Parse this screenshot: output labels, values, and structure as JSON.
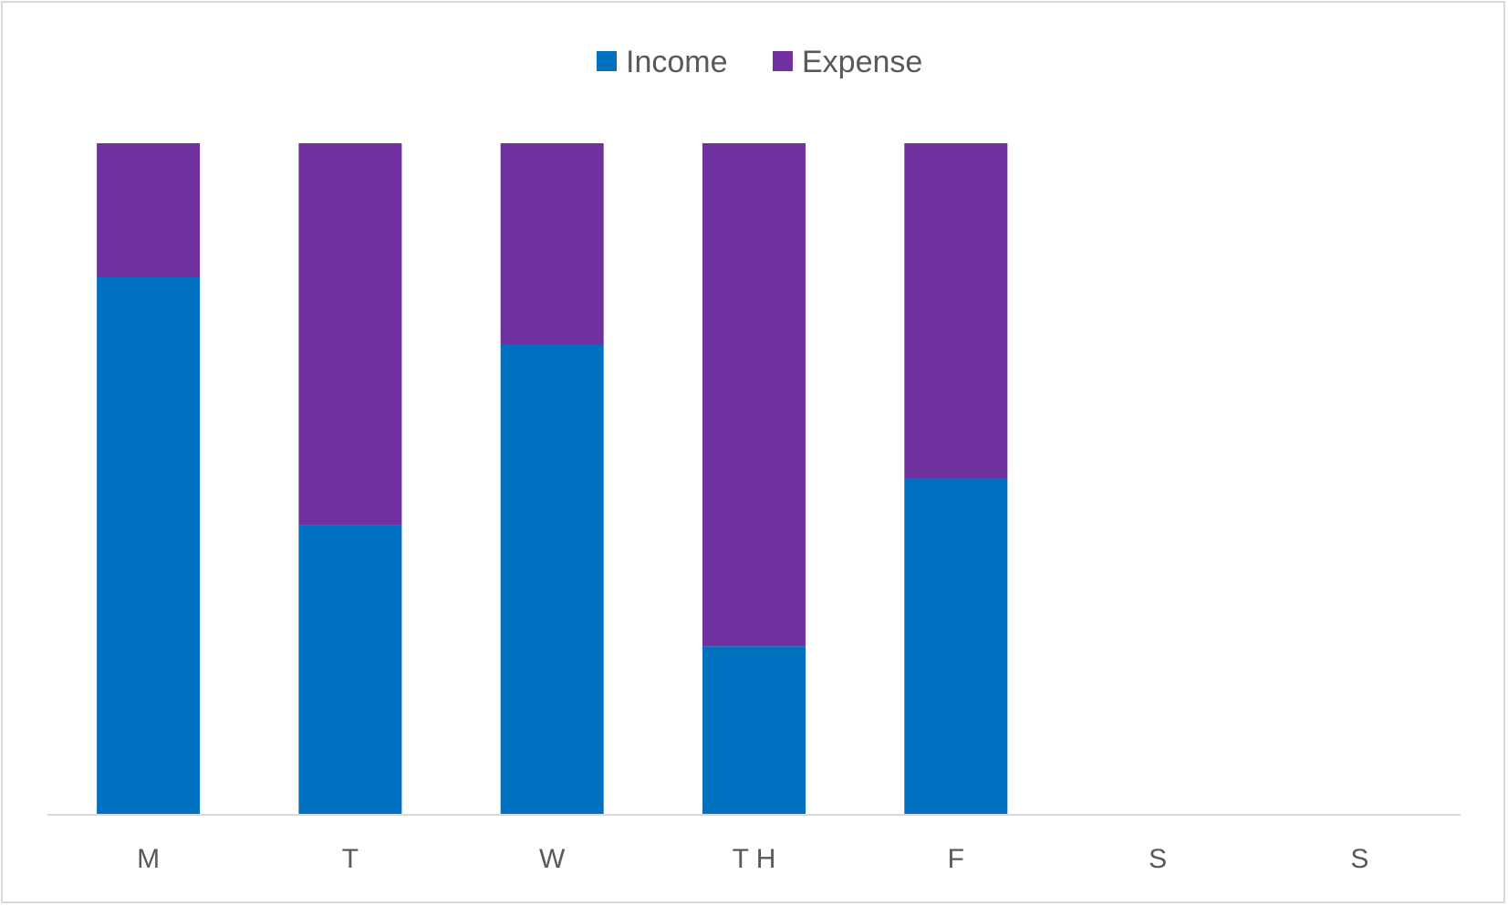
{
  "chart_data": {
    "type": "bar",
    "stacked": true,
    "stack_mode": "percent",
    "categories": [
      "M",
      "T",
      "W",
      "T H",
      "F",
      "S",
      "S"
    ],
    "series": [
      {
        "name": "Income",
        "color": "#0070c0",
        "values": [
          80,
          43,
          70,
          25,
          50,
          null,
          null
        ]
      },
      {
        "name": "Expense",
        "color": "#7030a0",
        "values": [
          20,
          57,
          30,
          75,
          50,
          null,
          null
        ]
      }
    ],
    "ylim": [
      0,
      100
    ],
    "grid": false,
    "legend_position": "top"
  }
}
